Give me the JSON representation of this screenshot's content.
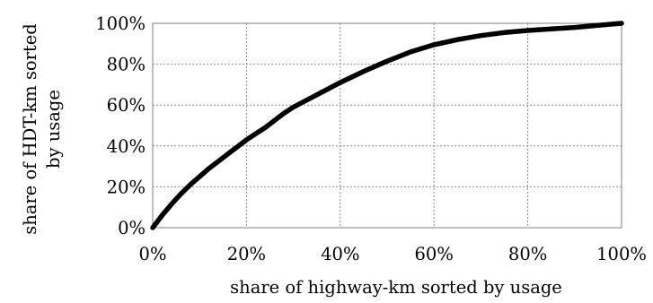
{
  "chart_data": {
    "type": "line",
    "title": "",
    "xlabel": "share of highway-km sorted by usage",
    "ylabel_lines": [
      "share of HDT-km sorted",
      "by usage"
    ],
    "xlim": [
      0,
      100
    ],
    "ylim": [
      0,
      100
    ],
    "x_ticks": [
      "0%",
      "20%",
      "40%",
      "60%",
      "80%",
      "100%"
    ],
    "y_ticks": [
      "0%",
      "20%",
      "40%",
      "60%",
      "80%",
      "100%"
    ],
    "grid": true,
    "legend": "none",
    "series": [
      {
        "color": "#000000",
        "x": [
          0,
          1,
          2,
          4,
          6,
          8,
          10,
          12,
          14,
          16,
          18,
          20,
          22,
          24,
          26,
          28,
          30,
          35,
          40,
          45,
          50,
          55,
          60,
          65,
          70,
          75,
          80,
          85,
          90,
          95,
          100
        ],
        "y": [
          0,
          3,
          6,
          11.5,
          16.5,
          21,
          25,
          29,
          32.5,
          36,
          39.5,
          43,
          46,
          49,
          52.5,
          56,
          59,
          65,
          71,
          76.5,
          81.5,
          86,
          89.5,
          92,
          94,
          95.5,
          96.5,
          97.3,
          98,
          99,
          100
        ]
      }
    ]
  }
}
